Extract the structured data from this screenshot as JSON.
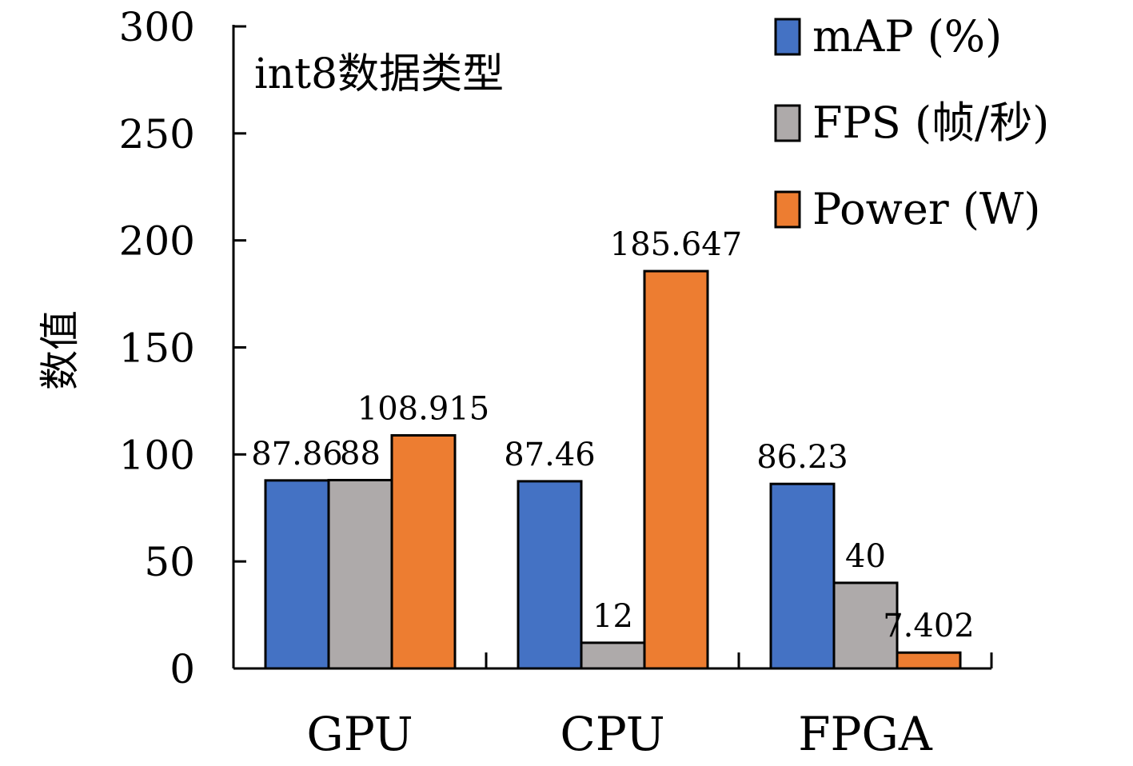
{
  "chart_data": {
    "type": "bar",
    "annotation": "int8数据类型",
    "ylabel": "数值",
    "xlabel": "",
    "ylim": [
      0,
      300
    ],
    "yticks": [
      0,
      50,
      100,
      150,
      200,
      250,
      300
    ],
    "categories": [
      "GPU",
      "CPU",
      "FPGA"
    ],
    "series": [
      {
        "name": "mAP (%)",
        "color": "#4472c4",
        "values": [
          87.86,
          87.46,
          86.23
        ],
        "labels": [
          "87.86",
          "87.46",
          "86.23"
        ]
      },
      {
        "name": "FPS (帧/秒)",
        "color": "#aeaaaa",
        "values": [
          88,
          12,
          40
        ],
        "labels": [
          "88",
          "12",
          "40"
        ]
      },
      {
        "name": "Power (W)",
        "color": "#ed7d31",
        "values": [
          108.915,
          185.647,
          7.402
        ],
        "labels": [
          "108.915",
          "185.647",
          "7.402"
        ]
      }
    ],
    "legend_position": "top-right",
    "grid": false
  }
}
